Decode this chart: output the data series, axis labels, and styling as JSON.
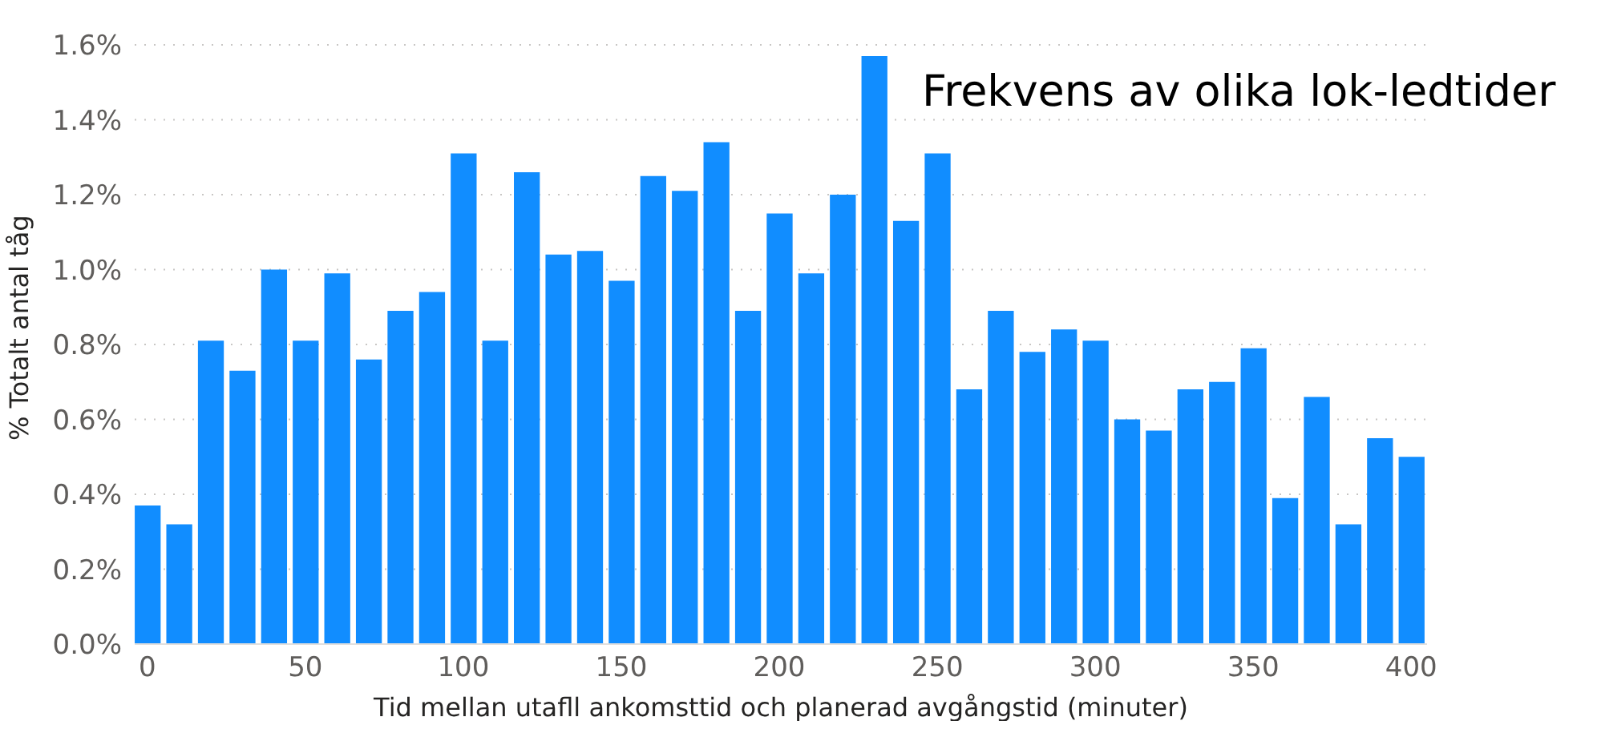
{
  "chart_data": {
    "type": "bar",
    "title": "Frekvens av olika lok-ledtider",
    "xlabel": "Tid mellan utafll ankomsttid och planerad avgångstid (minuter)",
    "ylabel": "% Totalt antal tåg",
    "x": [
      0,
      10,
      20,
      30,
      40,
      50,
      60,
      70,
      80,
      90,
      100,
      110,
      120,
      130,
      140,
      150,
      160,
      170,
      180,
      190,
      200,
      210,
      220,
      230,
      240,
      250,
      260,
      270,
      280,
      290,
      300,
      310,
      320,
      330,
      340,
      350,
      360,
      370,
      380,
      390,
      400
    ],
    "series": [
      {
        "color": "#118dff",
        "values": [
          0.37,
          0.32,
          0.81,
          0.73,
          1.0,
          0.81,
          0.99,
          0.76,
          0.89,
          0.94,
          1.31,
          0.81,
          1.26,
          1.04,
          1.05,
          0.97,
          1.25,
          1.21,
          1.34,
          0.89,
          1.15,
          0.99,
          1.2,
          1.57,
          1.13,
          1.31,
          0.68,
          0.89,
          0.78,
          0.84,
          0.81,
          0.6,
          0.57,
          0.68,
          0.7,
          0.79,
          0.39,
          0.66,
          0.32,
          0.55,
          0.5
        ]
      }
    ],
    "xlim": [
      -4,
      405
    ],
    "xticks": [
      0,
      50,
      100,
      150,
      200,
      250,
      300,
      350,
      400
    ],
    "ylim": [
      0,
      1.6
    ],
    "yticks": [
      {
        "value": 0,
        "label": "0.0%"
      },
      {
        "value": 0.2,
        "label": "0.2%"
      },
      {
        "value": 0.4,
        "label": "0.4%"
      },
      {
        "value": 0.6,
        "label": "0.6%"
      },
      {
        "value": 0.8,
        "label": "0.8%"
      },
      {
        "value": 1.0,
        "label": "1.0%"
      },
      {
        "value": 1.2,
        "label": "1.2%"
      },
      {
        "value": 1.4,
        "label": "1.4%"
      },
      {
        "value": 1.6,
        "label": "1.6%"
      }
    ],
    "grid": "y",
    "legend": false
  }
}
